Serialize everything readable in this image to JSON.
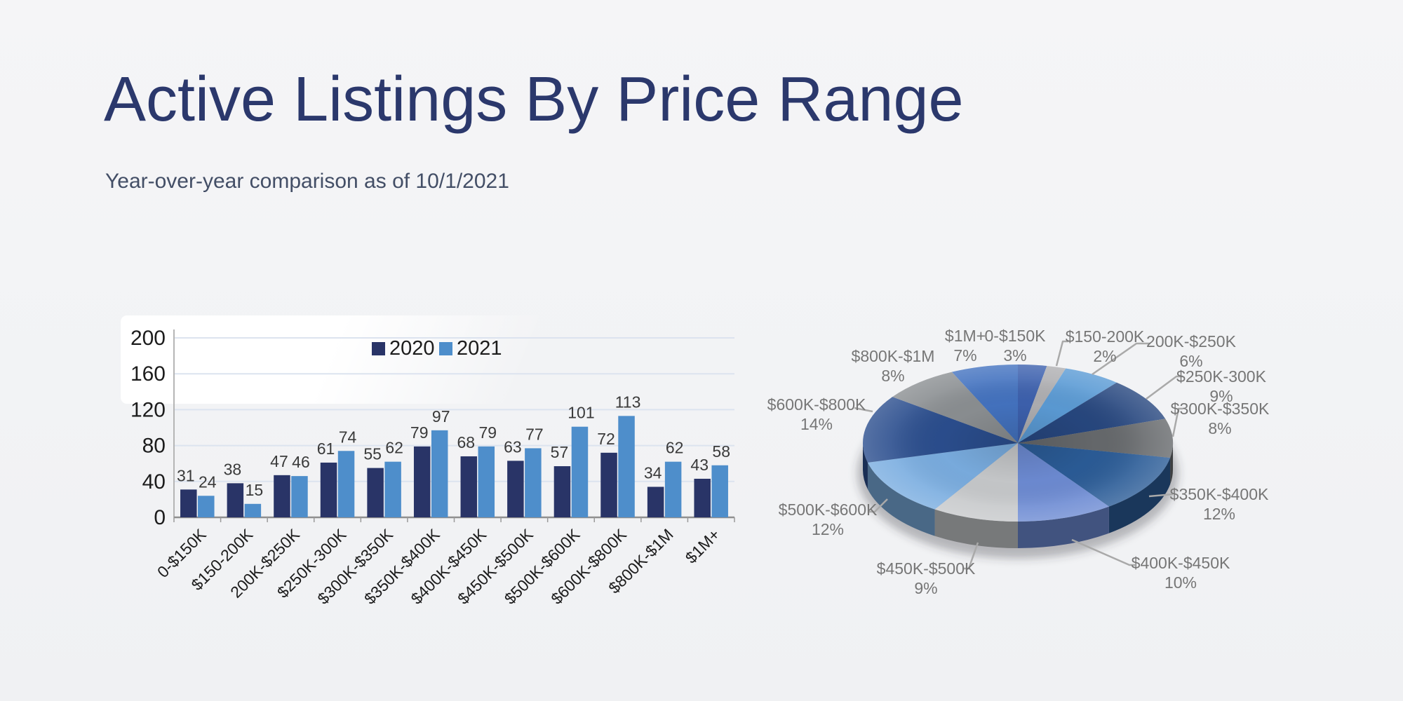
{
  "slide": {
    "title": "Active Listings By Price Range",
    "subtitle": "Year-over-year comparison as of 10/1/2021",
    "background_color": "#F2F3F5",
    "title_color": "#2B386C",
    "subtitle_color": "#434E66"
  },
  "chart_data": [
    {
      "type": "bar",
      "title": "",
      "xlabel": "",
      "ylabel": "",
      "categories": [
        "0-$150K",
        "$150-200K",
        "200K-$250K",
        "$250K-300K",
        "$300K-$350K",
        "$350K-$400K",
        "$400K-$450K",
        "$450K-$500K",
        "$500K-$600K",
        "$600K-$800K",
        "$800K-$1M",
        "$1M+"
      ],
      "series": [
        {
          "name": "2020",
          "color": "#293467",
          "values": [
            31,
            38,
            47,
            61,
            55,
            79,
            68,
            63,
            57,
            72,
            34,
            43
          ]
        },
        {
          "name": "2021",
          "color": "#4E8ECB",
          "values": [
            24,
            15,
            46,
            74,
            62,
            97,
            79,
            77,
            101,
            113,
            62,
            58
          ]
        }
      ],
      "ylim": [
        0,
        200
      ],
      "ytick_step": 40,
      "yticks": [
        0,
        40,
        80,
        120,
        160,
        200
      ],
      "grid": true,
      "legend_position": "top-center",
      "gridline_color": "#DCE3EF",
      "axis_color": "#9B9B9B",
      "tick_label_color": "#1C1C1C",
      "value_label_color": "#3A3A3A"
    },
    {
      "type": "pie",
      "style": "3d",
      "start_angle_deg": 0,
      "direction": "clockwise",
      "labels": [
        "0-$150K",
        "$150-200K",
        "200K-$250K",
        "$250K-300K",
        "$300K-$350K",
        "$350K-$400K",
        "$400K-$450K",
        "$450K-$500K",
        "$500K-$600K",
        "$600K-$800K",
        "$800K-$1M",
        "$1M+"
      ],
      "values": [
        3,
        2,
        6,
        9,
        8,
        12,
        10,
        9,
        12,
        14,
        8,
        7
      ],
      "unit": "%",
      "colors": [
        "#3D61AE",
        "#AFAFB2",
        "#5B9BD5",
        "#27477F",
        "#66696C",
        "#2B5C97",
        "#6D8BD3",
        "#C7C9CB",
        "#7AADE0",
        "#2B4E8E",
        "#8B8F92",
        "#4473C0"
      ],
      "label_color": "#767676",
      "leader_line_color": "#A9A9A9"
    }
  ]
}
